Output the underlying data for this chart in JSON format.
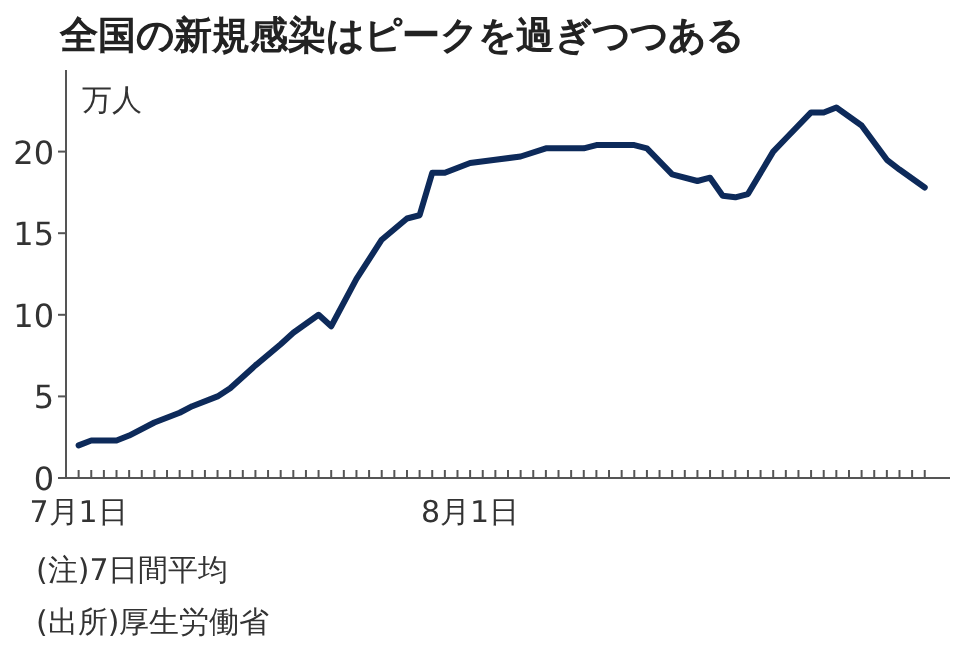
{
  "chart_data": {
    "type": "line",
    "title": "全国の新規感染はピークを過ぎつつある",
    "ylabel": "万人",
    "annotations": [
      "(注)7日間平均",
      "(出所)厚生労働省"
    ],
    "x": [
      "--07-01",
      "--07-02",
      "--07-04",
      "--07-05",
      "--07-07",
      "--07-09",
      "--07-10",
      "--07-12",
      "--07-13",
      "--07-15",
      "--07-17",
      "--07-18",
      "--07-20",
      "--07-21",
      "--07-23",
      "--07-25",
      "--07-27",
      "--07-28",
      "--07-29",
      "--07-30",
      "--08-01",
      "--08-03",
      "--08-05",
      "--08-07",
      "--08-10",
      "--08-11",
      "--08-14",
      "--08-15",
      "--08-17",
      "--08-19",
      "--08-20",
      "--08-21",
      "--08-22",
      "--08-23",
      "--08-25",
      "--08-26",
      "--08-28",
      "--08-29",
      "--08-30",
      "--09-01",
      "--09-03",
      "--09-04",
      "--09-06"
    ],
    "series": [
      {
        "color": "#0d2a5a",
        "values": [
          2.0,
          2.3,
          2.3,
          2.6,
          3.4,
          4.0,
          4.4,
          5.0,
          5.5,
          6.9,
          8.2,
          8.9,
          10.0,
          9.3,
          12.2,
          14.6,
          15.9,
          16.1,
          18.7,
          18.7,
          19.3,
          19.5,
          19.7,
          20.2,
          20.2,
          20.4,
          20.4,
          20.2,
          18.6,
          18.2,
          18.4,
          17.3,
          17.2,
          17.4,
          20.0,
          20.8,
          22.4,
          22.4,
          22.7,
          21.6,
          19.5,
          18.9,
          17.8
        ]
      }
    ],
    "xlim": [
      "--06-30",
      "--09-08"
    ],
    "ylim": [
      0,
      25
    ],
    "yticks": [
      0,
      5,
      10,
      15,
      20
    ],
    "xticks": [
      {
        "value": "--07-01",
        "label": "7月1日"
      },
      {
        "value": "--07-02",
        "label": null
      },
      {
        "value": "--07-03",
        "label": null
      },
      {
        "value": "--07-04",
        "label": null
      },
      {
        "value": "--07-05",
        "label": null
      },
      {
        "value": "--07-06",
        "label": null
      },
      {
        "value": "--07-07",
        "label": null
      },
      {
        "value": "--07-08",
        "label": null
      },
      {
        "value": "--07-09",
        "label": null
      },
      {
        "value": "--07-10",
        "label": null
      },
      {
        "value": "--07-11",
        "label": null
      },
      {
        "value": "--07-12",
        "label": null
      },
      {
        "value": "--07-13",
        "label": null
      },
      {
        "value": "--07-14",
        "label": null
      },
      {
        "value": "--07-15",
        "label": null
      },
      {
        "value": "--07-16",
        "label": null
      },
      {
        "value": "--07-17",
        "label": null
      },
      {
        "value": "--07-18",
        "label": null
      },
      {
        "value": "--07-19",
        "label": null
      },
      {
        "value": "--07-20",
        "label": null
      },
      {
        "value": "--07-21",
        "label": null
      },
      {
        "value": "--07-22",
        "label": null
      },
      {
        "value": "--07-23",
        "label": null
      },
      {
        "value": "--07-24",
        "label": null
      },
      {
        "value": "--07-25",
        "label": null
      },
      {
        "value": "--07-26",
        "label": null
      },
      {
        "value": "--07-27",
        "label": null
      },
      {
        "value": "--07-28",
        "label": null
      },
      {
        "value": "--07-29",
        "label": null
      },
      {
        "value": "--07-30",
        "label": null
      },
      {
        "value": "--07-31",
        "label": null
      },
      {
        "value": "--08-01",
        "label": "8月1日"
      },
      {
        "value": "--08-02",
        "label": null
      },
      {
        "value": "--08-03",
        "label": null
      },
      {
        "value": "--08-04",
        "label": null
      },
      {
        "value": "--08-05",
        "label": null
      },
      {
        "value": "--08-06",
        "label": null
      },
      {
        "value": "--08-07",
        "label": null
      },
      {
        "value": "--08-08",
        "label": null
      },
      {
        "value": "--08-09",
        "label": null
      },
      {
        "value": "--08-10",
        "label": null
      },
      {
        "value": "--08-11",
        "label": null
      },
      {
        "value": "--08-12",
        "label": null
      },
      {
        "value": "--08-13",
        "label": null
      },
      {
        "value": "--08-14",
        "label": null
      },
      {
        "value": "--08-15",
        "label": null
      },
      {
        "value": "--08-16",
        "label": null
      },
      {
        "value": "--08-17",
        "label": null
      },
      {
        "value": "--08-18",
        "label": null
      },
      {
        "value": "--08-19",
        "label": null
      },
      {
        "value": "--08-20",
        "label": null
      },
      {
        "value": "--08-21",
        "label": null
      },
      {
        "value": "--08-22",
        "label": null
      },
      {
        "value": "--08-23",
        "label": null
      },
      {
        "value": "--08-24",
        "label": null
      },
      {
        "value": "--08-25",
        "label": null
      },
      {
        "value": "--08-26",
        "label": null
      },
      {
        "value": "--08-27",
        "label": null
      },
      {
        "value": "--08-28",
        "label": null
      },
      {
        "value": "--08-29",
        "label": null
      },
      {
        "value": "--08-30",
        "label": null
      },
      {
        "value": "--08-31",
        "label": null
      },
      {
        "value": "--09-01",
        "label": null
      },
      {
        "value": "--09-02",
        "label": null
      },
      {
        "value": "--09-03",
        "label": null
      },
      {
        "value": "--09-04",
        "label": null
      },
      {
        "value": "--09-05",
        "label": null
      },
      {
        "value": "--09-06",
        "label": null
      }
    ]
  }
}
